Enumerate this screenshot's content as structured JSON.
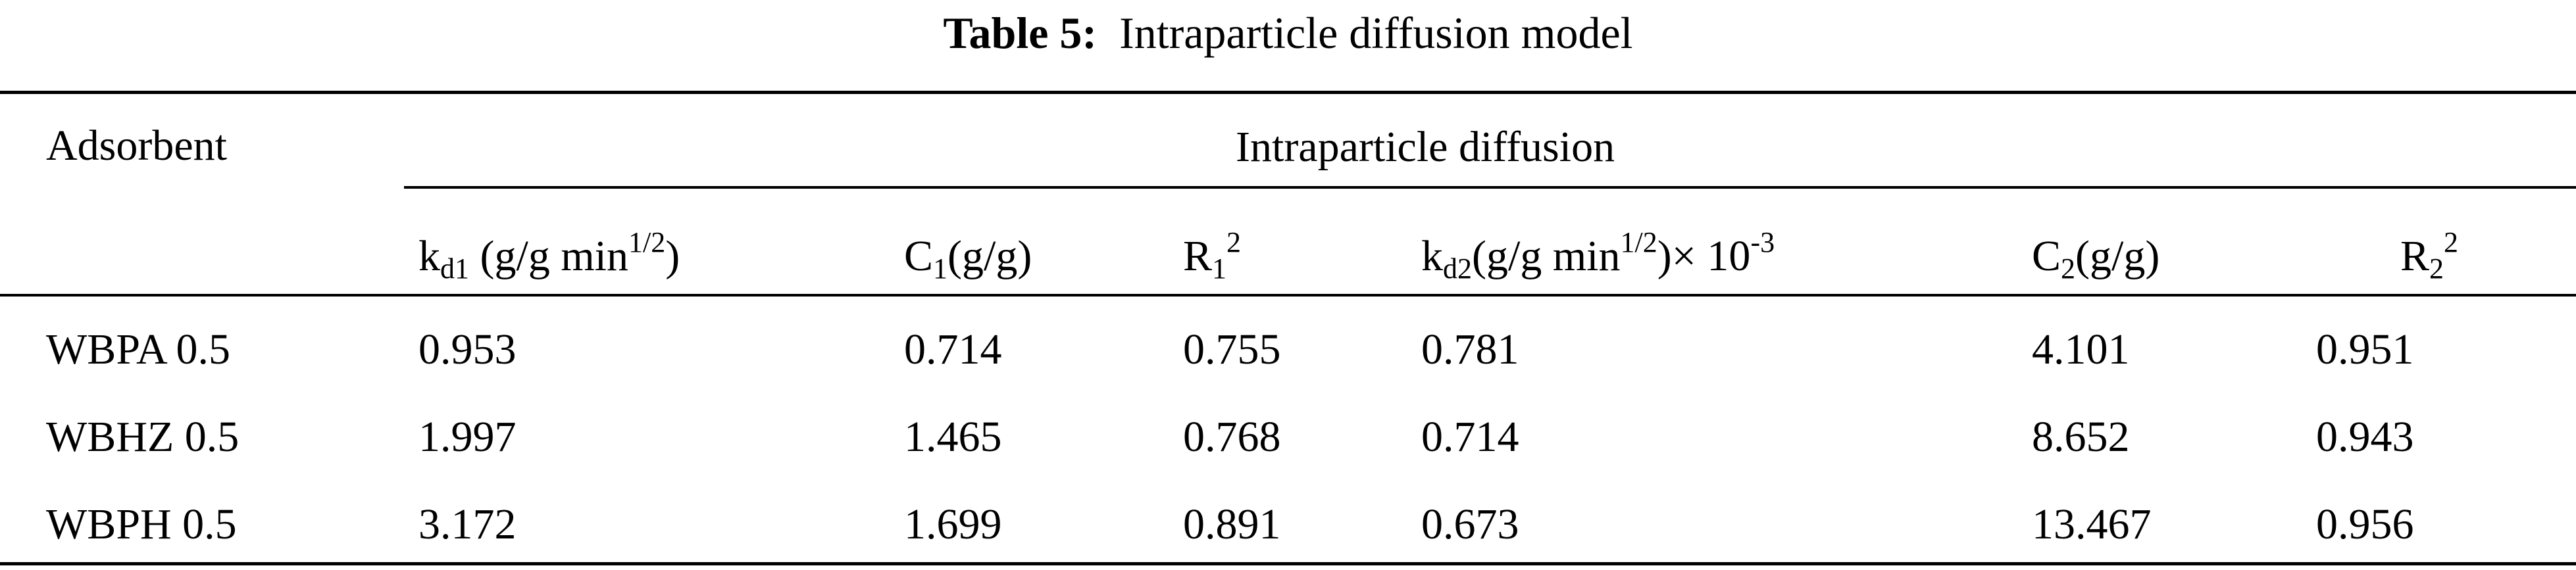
{
  "caption": {
    "label": "Table 5:",
    "text": "Intraparticle diffusion model"
  },
  "header": {
    "adsorbent": "Adsorbent",
    "group": "Intraparticle diffusion",
    "kd1": {
      "base": "k",
      "sub": "d1",
      "mid": " (g/g min",
      "sup": "1/2",
      "end": ")"
    },
    "c1": {
      "base": "C",
      "sub": "1",
      "end": "(g/g)"
    },
    "r1": {
      "base": "R",
      "sub": "1",
      "sup": "2"
    },
    "kd2": {
      "base": "k",
      "sub": "d2",
      "mid": "(g/g min",
      "sup": "1/2",
      "mid2": ")× 10",
      "sup2": "-3"
    },
    "c2": {
      "base": "C",
      "sub": "2",
      "end": "(g/g)"
    },
    "r2": {
      "base": "R",
      "sub": "2",
      "sup": "2"
    }
  },
  "rows": [
    {
      "adsorbent": "WBPA 0.5",
      "kd1": "0.953",
      "c1": "0.714",
      "r1": "0.755",
      "kd2": "0.781",
      "c2": "4.101",
      "r2": "0.951"
    },
    {
      "adsorbent": "WBHZ 0.5",
      "kd1": "1.997",
      "c1": "1.465",
      "r1": "0.768",
      "kd2": "0.714",
      "c2": "8.652",
      "r2": "0.943"
    },
    {
      "adsorbent": "WBPH 0.5",
      "kd1": "3.172",
      "c1": "1.699",
      "r1": "0.891",
      "kd2": "0.673",
      "c2": "13.467",
      "r2": "0.956"
    }
  ]
}
